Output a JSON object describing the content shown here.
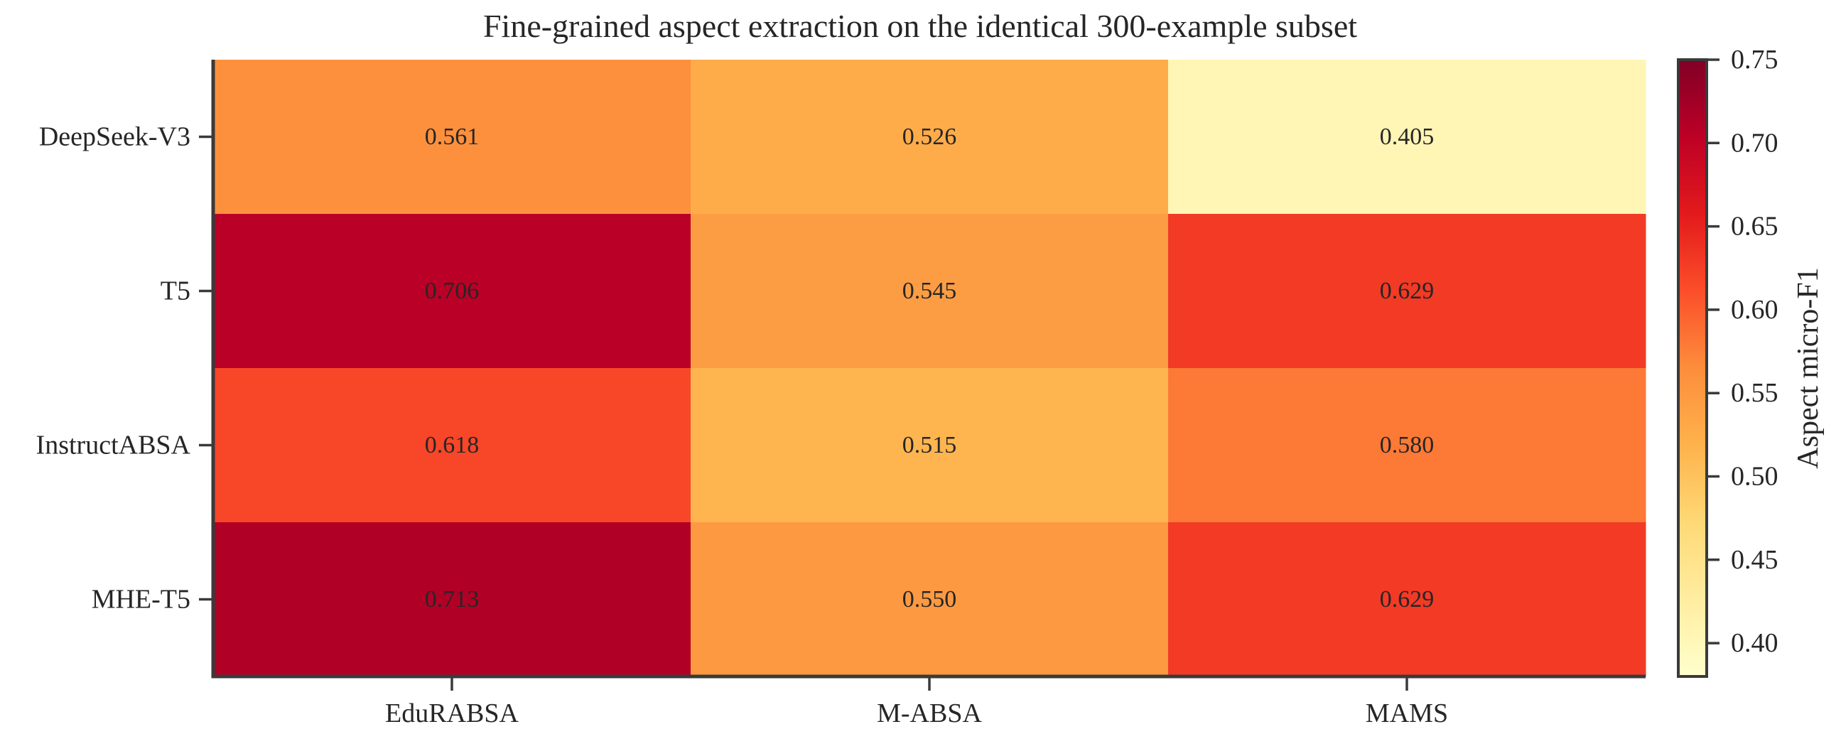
{
  "chart_data": {
    "type": "heatmap",
    "title": "Fine-grained aspect extraction on the identical 300-example subset",
    "columns": [
      "EduRABSA",
      "M-ABSA",
      "MAMS"
    ],
    "rows": [
      "DeepSeek-V3",
      "T5",
      "InstructABSA",
      "MHE-T5"
    ],
    "values": [
      [
        0.561,
        0.526,
        0.405
      ],
      [
        0.706,
        0.545,
        0.629
      ],
      [
        0.618,
        0.515,
        0.58
      ],
      [
        0.713,
        0.55,
        0.629
      ]
    ],
    "value_labels": [
      [
        "0.561",
        "0.526",
        "0.405"
      ],
      [
        "0.706",
        "0.545",
        "0.629"
      ],
      [
        "0.618",
        "0.515",
        "0.580"
      ],
      [
        "0.713",
        "0.550",
        "0.629"
      ]
    ],
    "colormap": "YlOrRd",
    "vmin": 0.38,
    "vmax": 0.75,
    "colorbar": {
      "label": "Aspect micro-F1",
      "ticks": [
        0.4,
        0.45,
        0.5,
        0.55,
        0.6,
        0.65,
        0.7,
        0.75
      ],
      "tick_labels": [
        "0.40",
        "0.45",
        "0.50",
        "0.55",
        "0.60",
        "0.65",
        "0.70",
        "0.75"
      ]
    }
  }
}
